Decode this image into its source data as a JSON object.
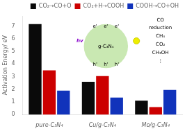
{
  "chart_data": {
    "type": "bar",
    "categories": [
      "pure-C₃N₄",
      "Cu/g-C₃N₄",
      "Mo/g-C₃N₄"
    ],
    "series": [
      {
        "name": "CO₂→CO+O",
        "color": "#0a0a0a",
        "values": [
          7.15,
          2.6,
          1.1
        ]
      },
      {
        "name": "CO₂+H→COOH",
        "color": "#cc0000",
        "values": [
          3.5,
          3.05,
          0.6
        ]
      },
      {
        "name": "COOH→CO+OH",
        "color": "#1133bb",
        "values": [
          1.9,
          1.35,
          1.95
        ]
      }
    ],
    "ylabel": "Activation Energy/ eV",
    "ylim": [
      0,
      7.8
    ],
    "yticks": [
      0,
      1,
      2,
      3,
      4,
      5,
      6,
      7
    ],
    "grid": false,
    "legend": "upper right",
    "annotations": [
      "hv",
      "g-C₃N₄",
      "e'",
      "e'",
      "e'",
      "h'",
      "h'",
      "h'",
      "CO",
      "reduction",
      "CH₄",
      "CO₂",
      "CH₃OH",
      "⋮"
    ]
  }
}
